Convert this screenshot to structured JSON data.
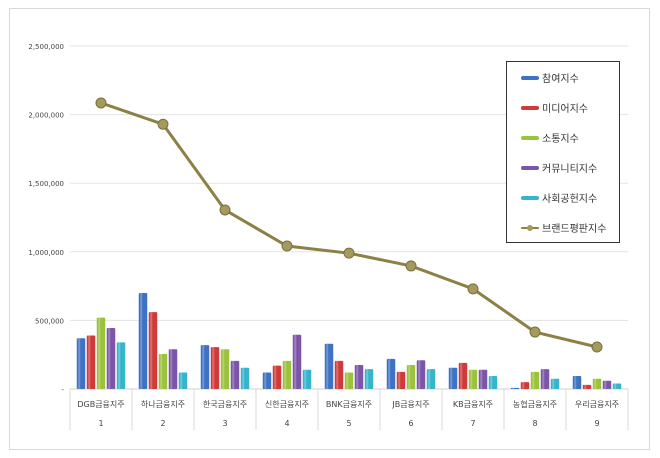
{
  "chart_data": {
    "type": "bar",
    "title": "",
    "categories": [
      "DGB금융지주",
      "하나금융지주",
      "한국금융지주",
      "신한금융지주",
      "BNK금융지주",
      "JB금융지주",
      "KB금융지주",
      "농협금융지주",
      "우리금융지주"
    ],
    "category_numbers": [
      "1",
      "2",
      "3",
      "4",
      "5",
      "6",
      "7",
      "8",
      "9"
    ],
    "ylim": [
      0,
      2500000
    ],
    "yticks": [
      0,
      500000,
      1000000,
      1500000,
      2000000,
      2500000
    ],
    "ytick_labels": [
      "-",
      "500,000",
      "1,000,000",
      "1,500,000",
      "2,000,000",
      "2,500,000"
    ],
    "grid": true,
    "legend_position": "top-right",
    "series": [
      {
        "name": "참여지수",
        "type": "bar",
        "color": "#3d72c4",
        "values": [
          370000,
          700000,
          320000,
          120000,
          330000,
          220000,
          155000,
          8000,
          95000
        ]
      },
      {
        "name": "미디어지수",
        "type": "bar",
        "color": "#cf3b3b",
        "values": [
          390000,
          560000,
          305000,
          170000,
          205000,
          125000,
          190000,
          50000,
          30000
        ]
      },
      {
        "name": "소통지수",
        "type": "bar",
        "color": "#9bc23c",
        "values": [
          520000,
          255000,
          290000,
          205000,
          120000,
          175000,
          140000,
          125000,
          75000
        ]
      },
      {
        "name": "커뮤니티지수",
        "type": "bar",
        "color": "#7d55a8",
        "values": [
          445000,
          290000,
          205000,
          395000,
          175000,
          210000,
          140000,
          145000,
          60000
        ]
      },
      {
        "name": "사회공헌지수",
        "type": "bar",
        "color": "#36b4cc",
        "values": [
          340000,
          120000,
          155000,
          140000,
          145000,
          145000,
          95000,
          75000,
          40000
        ]
      },
      {
        "name": "브랜드평판지수",
        "type": "line",
        "color": "#8c8045",
        "values": [
          2085000,
          1930000,
          1305000,
          1042000,
          990000,
          897000,
          730000,
          415000,
          306000
        ]
      }
    ]
  }
}
